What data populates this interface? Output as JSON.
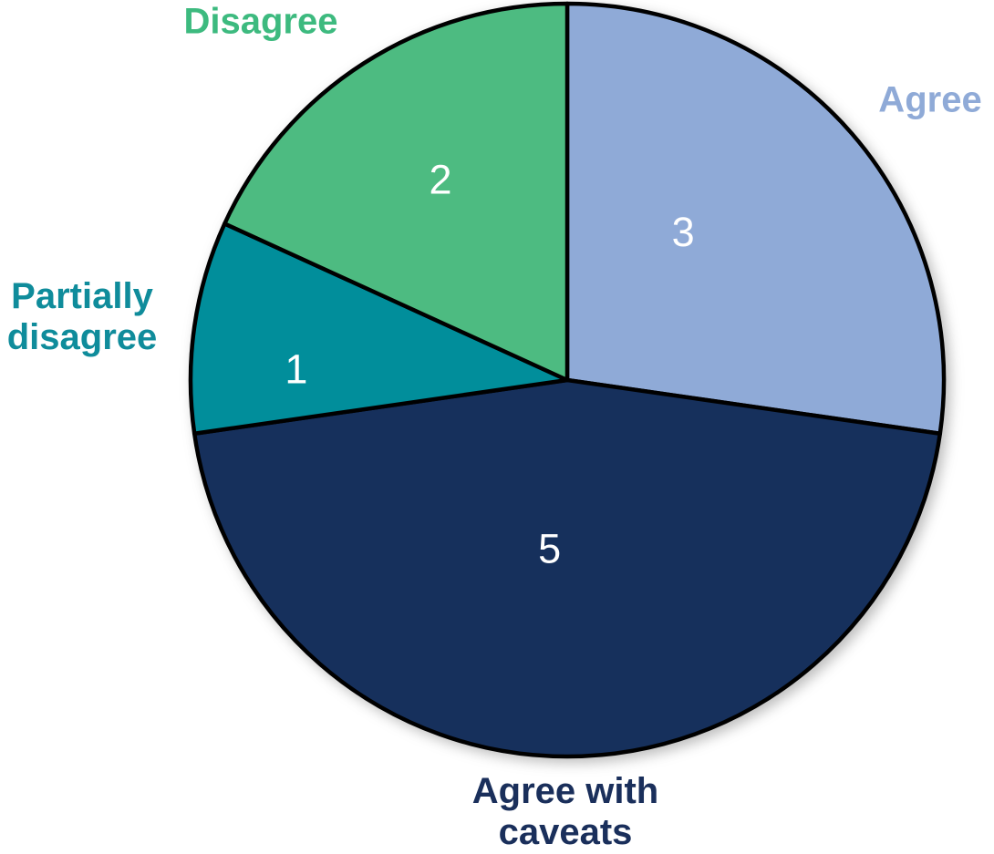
{
  "chart_data": {
    "type": "pie",
    "title": "",
    "total": 11,
    "direction": "clockwise",
    "start_angle_deg": 0,
    "stroke_color": "#000000",
    "stroke_width": 4.5,
    "value_label_color": "#ffffff",
    "background": "#ffffff",
    "legend": "none",
    "slices": [
      {
        "label": "Agree",
        "label_display": "Agree",
        "value": 3,
        "color": "#8FAAD7",
        "label_color": "#8FAAD7",
        "value_label": {
          "angle_deg": 38,
          "r_frac": 0.5
        }
      },
      {
        "label": "Agree with caveats",
        "label_display": "Agree with\ncaveats",
        "value": 5,
        "color": "#16305C",
        "label_color": "#1A2F5B",
        "value_label": {
          "angle_deg": 186,
          "r_frac": 0.45
        }
      },
      {
        "label": "Partially disagree",
        "label_display": "Partially\ndisagree",
        "value": 1,
        "color": "#018E9B",
        "label_color": "#0F8C9B",
        "value_label": {
          "angle_deg": 272.3,
          "r_frac": 0.72
        }
      },
      {
        "label": "Disagree",
        "label_display": "Disagree",
        "value": 2,
        "color": "#4DBB81",
        "label_color": "#3DBA7F",
        "value_label": {
          "angle_deg": 327.7,
          "r_frac": 0.63
        }
      }
    ]
  }
}
